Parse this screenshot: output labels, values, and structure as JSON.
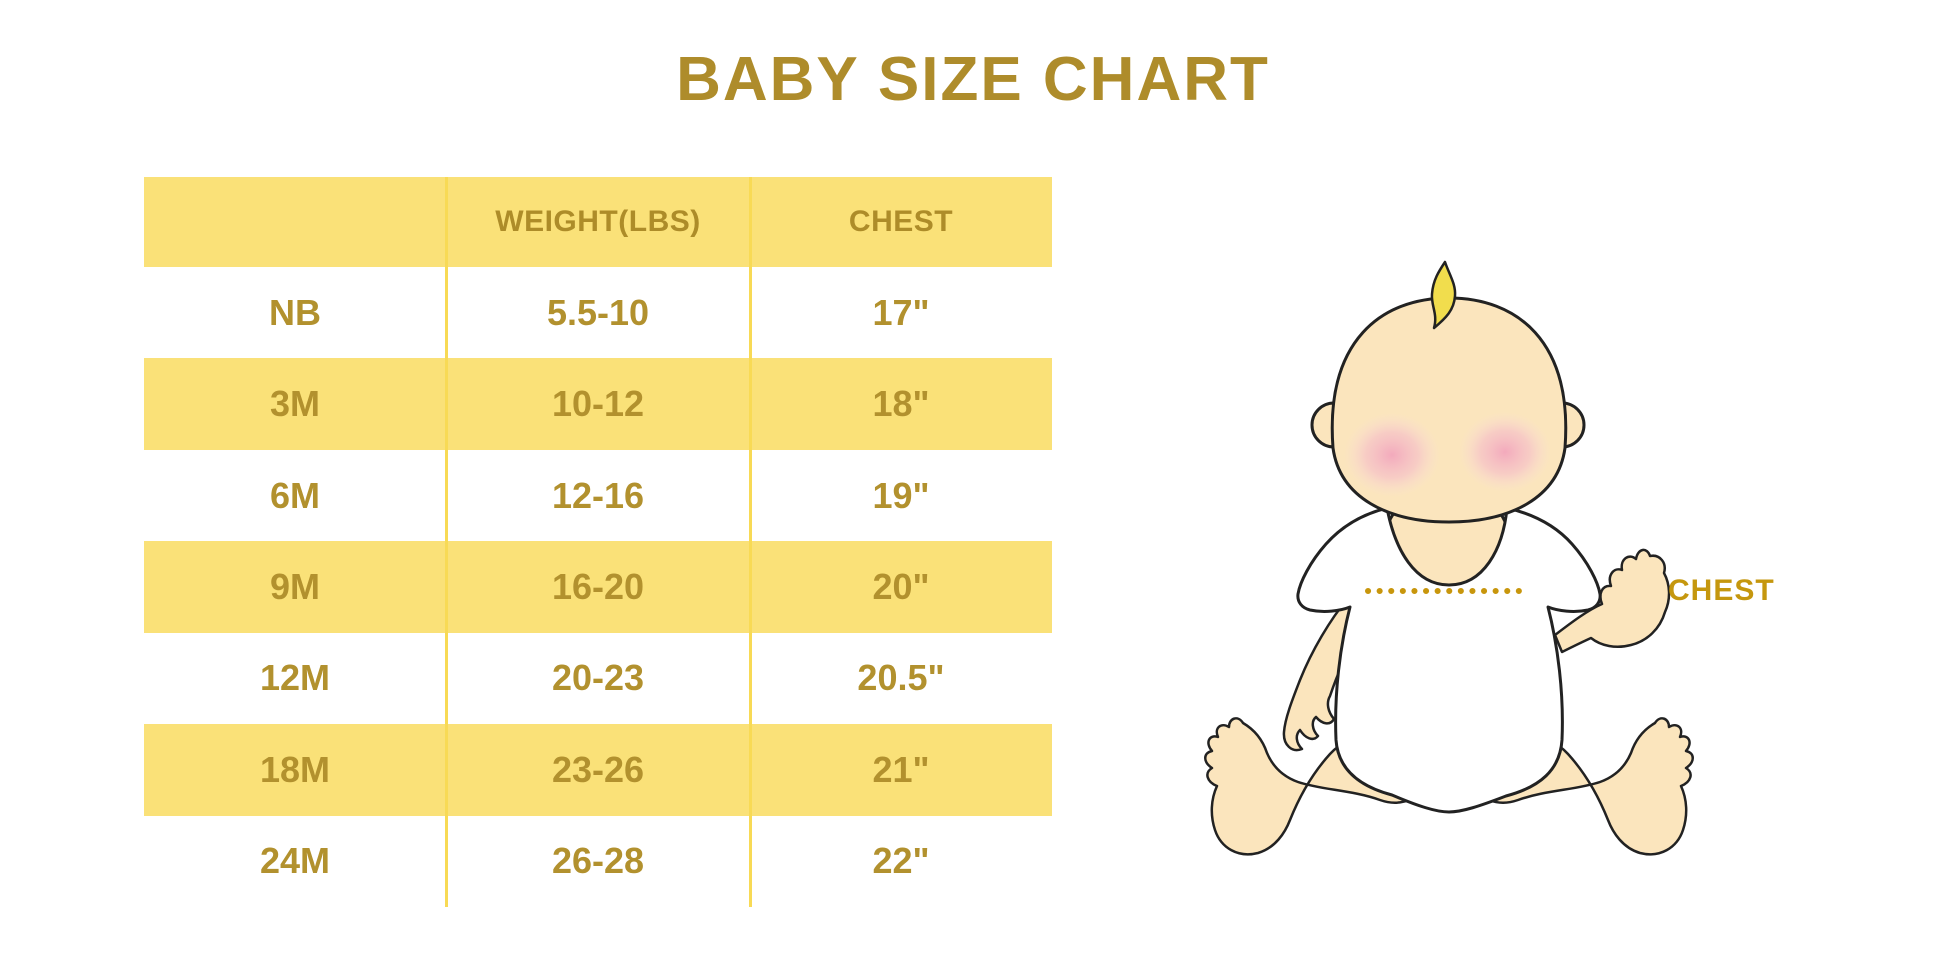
{
  "title": "BABY SIZE CHART",
  "chart_data": {
    "type": "table",
    "title": "BABY SIZE CHART",
    "columns": [
      "",
      "WEIGHT(LBS)",
      "CHEST"
    ],
    "rows": [
      [
        "NB",
        "5.5-10",
        "17\""
      ],
      [
        "3M",
        "10-12",
        "18\""
      ],
      [
        "6M",
        "12-16",
        "19\""
      ],
      [
        "9M",
        "16-20",
        "20\""
      ],
      [
        "12M",
        "20-23",
        "20.5\""
      ],
      [
        "18M",
        "23-26",
        "21\""
      ],
      [
        "24M",
        "26-28",
        "22\""
      ]
    ],
    "layout_hint": "header row and alternating body rows filled light yellow; gold bold text; two vertical yellow column dividers",
    "annotation": "CHEST"
  },
  "illustration": {
    "chest_label": "CHEST",
    "icon": "baby-sitting-icon"
  },
  "colors": {
    "gold_text": "#B2912E",
    "title_gold": "#AE8C2B",
    "row_yellow": "#FAE178",
    "divider_yellow": "#F8DA55",
    "chest_gold": "#C5970E",
    "dotted_line_gold": "#C8960C",
    "skin": "#FBE5BD",
    "blush_pink": "#F2A9BE",
    "hair_yellow": "#F1DD4D",
    "outline_black": "#222222",
    "background": "#FFFFFF"
  }
}
